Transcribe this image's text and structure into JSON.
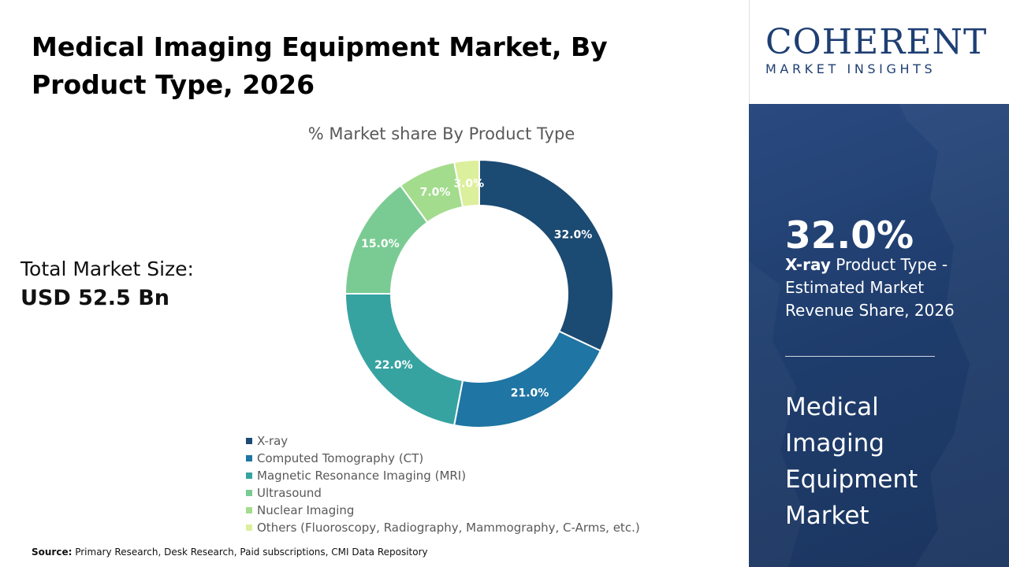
{
  "header": {
    "title": "Medical Imaging Equipment Market, By Product Type, 2026"
  },
  "market_size": {
    "label": "Total Market Size:",
    "value": "USD 52.5 Bn"
  },
  "logo": {
    "main": "COHERENT",
    "sub": "MARKET INSIGHTS",
    "color": "#1e3f73"
  },
  "highlight": {
    "value": "32.0%",
    "segment": "X-ray",
    "description": " Product Type - Estimated Market Revenue Share, 2026",
    "market_name": "Medical Imaging Equipment Market"
  },
  "source": {
    "label": "Source:",
    "text": " Primary Research, Desk Research, Paid subscriptions, CMI Data Repository"
  },
  "chart_data": {
    "type": "pie",
    "title": "% Market share By Product Type",
    "donut": true,
    "legend_position": "bottom",
    "categories": [
      "X-ray",
      "Computed Tomography (CT)",
      "Magnetic Resonance Imaging (MRI)",
      "Ultrasound",
      "Nuclear Imaging",
      "Others (Fluoroscopy, Radiography, Mammography, C-Arms, etc.)"
    ],
    "values": [
      32.0,
      21.0,
      22.0,
      15.0,
      7.0,
      3.0
    ],
    "labels": [
      "32.0%",
      "21.0%",
      "22.0%",
      "15.0%",
      "7.0%",
      "3.0%"
    ],
    "colors": [
      "#1b4a73",
      "#1f75a3",
      "#36a3a1",
      "#7acb93",
      "#a3dc8d",
      "#dcef9c"
    ]
  }
}
